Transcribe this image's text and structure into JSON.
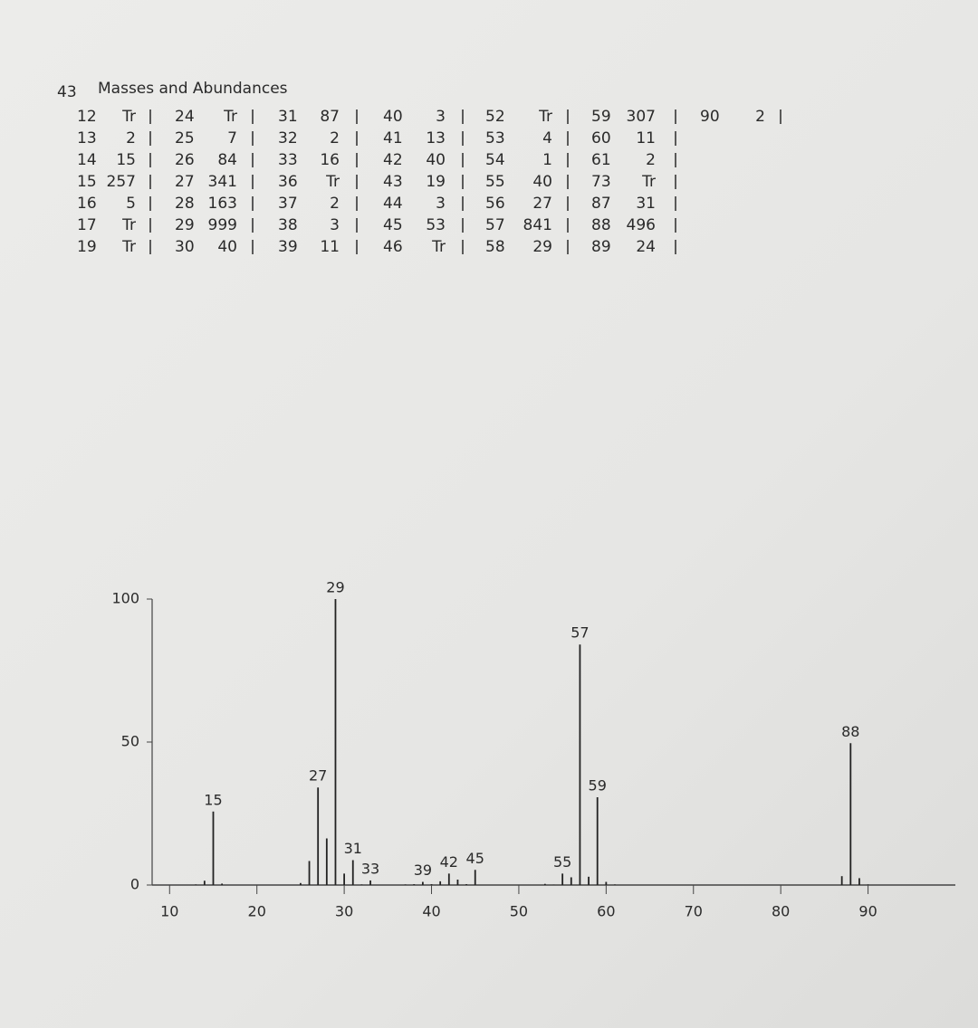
{
  "header": {
    "number": "43",
    "title": "Masses and Abundances"
  },
  "table": {
    "columns": [
      [
        [
          12,
          "Tr"
        ],
        [
          13,
          2
        ],
        [
          14,
          15
        ],
        [
          15,
          257
        ],
        [
          16,
          5
        ],
        [
          17,
          "Tr"
        ],
        [
          19,
          "Tr"
        ]
      ],
      [
        [
          24,
          "Tr"
        ],
        [
          25,
          7
        ],
        [
          26,
          84
        ],
        [
          27,
          341
        ],
        [
          28,
          163
        ],
        [
          29,
          999
        ],
        [
          30,
          40
        ]
      ],
      [
        [
          31,
          87
        ],
        [
          32,
          2
        ],
        [
          33,
          16
        ],
        [
          36,
          "Tr"
        ],
        [
          37,
          2
        ],
        [
          38,
          3
        ],
        [
          39,
          11
        ]
      ],
      [
        [
          40,
          3
        ],
        [
          41,
          13
        ],
        [
          42,
          40
        ],
        [
          43,
          19
        ],
        [
          44,
          3
        ],
        [
          45,
          53
        ],
        [
          46,
          "Tr"
        ]
      ],
      [
        [
          52,
          "Tr"
        ],
        [
          53,
          4
        ],
        [
          54,
          1
        ],
        [
          55,
          40
        ],
        [
          56,
          27
        ],
        [
          57,
          841
        ],
        [
          58,
          29
        ]
      ],
      [
        [
          59,
          307
        ],
        [
          60,
          11
        ],
        [
          61,
          2
        ],
        [
          73,
          "Tr"
        ],
        [
          87,
          31
        ],
        [
          88,
          496
        ],
        [
          89,
          24
        ]
      ],
      [
        [
          90,
          2
        ]
      ]
    ]
  },
  "chart_data": {
    "type": "bar",
    "x": [
      13,
      14,
      15,
      16,
      25,
      26,
      27,
      28,
      29,
      30,
      31,
      32,
      33,
      37,
      38,
      39,
      40,
      41,
      42,
      43,
      44,
      45,
      53,
      54,
      55,
      56,
      57,
      58,
      59,
      60,
      61,
      87,
      88,
      89,
      90
    ],
    "values": [
      0.2,
      1.5,
      25.7,
      0.5,
      0.7,
      8.4,
      34.1,
      16.3,
      100,
      4.0,
      8.7,
      0.2,
      1.6,
      0.2,
      0.3,
      1.1,
      0.3,
      1.3,
      4.0,
      1.9,
      0.3,
      5.3,
      0.4,
      0.1,
      4.0,
      2.7,
      84.1,
      2.9,
      30.7,
      1.1,
      0.2,
      3.1,
      49.6,
      2.4,
      0.2
    ],
    "peak_labels": [
      15,
      27,
      29,
      31,
      33,
      39,
      42,
      45,
      55,
      57,
      59,
      88
    ],
    "color": "#222222",
    "xlim": [
      8,
      100
    ],
    "ylim": [
      0,
      100
    ],
    "xticks": [
      10,
      20,
      30,
      40,
      50,
      60,
      70,
      80,
      90
    ],
    "yticks": [
      0,
      50,
      100
    ]
  }
}
